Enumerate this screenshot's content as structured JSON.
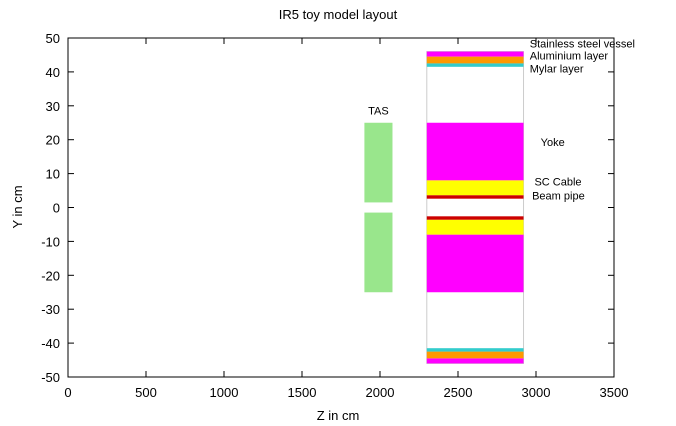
{
  "chart_data": {
    "type": "diagram",
    "title": "IR5 toy model layout",
    "xlabel": "Z in cm",
    "ylabel": "Y in cm",
    "xlim": [
      0,
      3500
    ],
    "ylim": [
      -50,
      50
    ],
    "xticks": [
      0,
      500,
      1000,
      1500,
      2000,
      2500,
      3000,
      3500
    ],
    "yticks": [
      -50,
      -40,
      -30,
      -20,
      -10,
      0,
      10,
      20,
      30,
      40,
      50
    ],
    "grid": false,
    "colors": {
      "tas": "#99e68c",
      "yoke": "#ff00ff",
      "sc_cable": "#ffff00",
      "beam_pipe": "#cc0000",
      "aluminium": "#ff9900",
      "mylar": "#33cccc",
      "stainless": "#ff00ff",
      "detector_outline": "#cccccc"
    },
    "components": [
      {
        "name": "TAS",
        "label": "TAS",
        "z": [
          1900,
          2080
        ],
        "y": [
          1.5,
          25
        ],
        "color": "tas"
      },
      {
        "name": "TAS",
        "label": "",
        "z": [
          1900,
          2080
        ],
        "y": [
          -25,
          -1.5
        ],
        "color": "tas"
      },
      {
        "name": "Yoke",
        "label": "",
        "z": [
          2300,
          2920
        ],
        "y": [
          8,
          25
        ],
        "color": "yoke"
      },
      {
        "name": "Yoke",
        "label": "",
        "z": [
          2300,
          2920
        ],
        "y": [
          -25,
          -8
        ],
        "color": "yoke"
      },
      {
        "name": "SC Cable",
        "label": "",
        "z": [
          2300,
          2920
        ],
        "y": [
          3.6,
          8
        ],
        "color": "sc_cable"
      },
      {
        "name": "SC Cable",
        "label": "",
        "z": [
          2300,
          2920
        ],
        "y": [
          -8,
          -3.6
        ],
        "color": "sc_cable"
      },
      {
        "name": "Beam pipe",
        "label": "",
        "z": [
          2300,
          2920
        ],
        "y": [
          2.6,
          3.6
        ],
        "color": "beam_pipe"
      },
      {
        "name": "Beam pipe",
        "label": "",
        "z": [
          2300,
          2920
        ],
        "y": [
          -3.6,
          -2.6
        ],
        "color": "beam_pipe"
      },
      {
        "name": "Stainless steel vessel",
        "label": "",
        "z": [
          2300,
          2920
        ],
        "y": [
          44.5,
          46
        ],
        "color": "stainless"
      },
      {
        "name": "Aluminium layer",
        "label": "",
        "z": [
          2300,
          2920
        ],
        "y": [
          42.5,
          44.5
        ],
        "color": "aluminium"
      },
      {
        "name": "Mylar layer",
        "label": "",
        "z": [
          2300,
          2920
        ],
        "y": [
          41.5,
          42.5
        ],
        "color": "mylar"
      },
      {
        "name": "Stainless steel vessel",
        "label": "",
        "z": [
          2300,
          2920
        ],
        "y": [
          -46,
          -44.5
        ],
        "color": "stainless"
      },
      {
        "name": "Aluminium layer",
        "label": "",
        "z": [
          2300,
          2920
        ],
        "y": [
          -44.5,
          -42.5
        ],
        "color": "aluminium"
      },
      {
        "name": "Mylar layer",
        "label": "",
        "z": [
          2300,
          2920
        ],
        "y": [
          -42.5,
          -41.5
        ],
        "color": "mylar"
      }
    ],
    "stripes": {
      "color": "sc_cable",
      "z": [
        2300,
        2920
      ],
      "y": [
        -4.2,
        -5.4,
        -6.6,
        -7.4
      ]
    },
    "outline": {
      "z": [
        2300,
        2920
      ],
      "y": [
        -46,
        46
      ]
    },
    "annotations": [
      {
        "text": "TAS",
        "z": 1990,
        "y": 27.5,
        "anchor": "middle"
      },
      {
        "text": "Stainless steel vessel",
        "z": 2960,
        "y": 47.2,
        "anchor": "start"
      },
      {
        "text": "Aluminium layer",
        "z": 2960,
        "y": 43.6,
        "anchor": "start"
      },
      {
        "text": "Mylar layer",
        "z": 2960,
        "y": 39.8,
        "anchor": "start"
      },
      {
        "text": "Yoke",
        "z": 3030,
        "y": 18.2,
        "anchor": "start"
      },
      {
        "text": "SC Cable",
        "z": 2990,
        "y": 6.5,
        "anchor": "start"
      },
      {
        "text": "Beam pipe",
        "z": 2975,
        "y": 2.3,
        "anchor": "start"
      }
    ]
  }
}
